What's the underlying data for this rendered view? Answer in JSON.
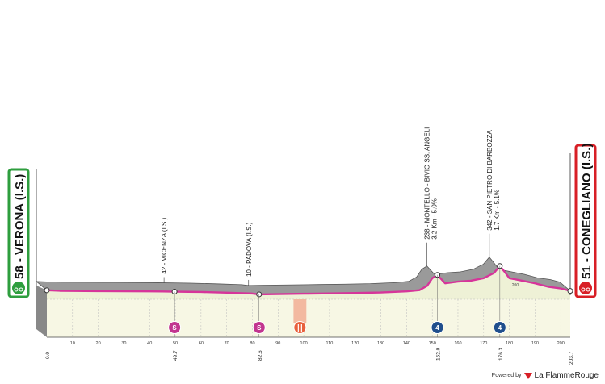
{
  "start": {
    "label": "58 - VERONA (I.S.)",
    "km": "0.0",
    "color": "#2e9e3e"
  },
  "finish": {
    "label": "51 - CONEGLIANO (I.S.)",
    "km": "203.7",
    "color": "#d81f26"
  },
  "waypoints": [
    {
      "label": "42 - VICENZA (I.S.)",
      "km": "49.7",
      "badge": "S",
      "badge_color": "#c2358f"
    },
    {
      "label": "10 - PADOVA (I.S.)",
      "km": "82.6",
      "badge": "S",
      "badge_color": "#c2358f"
    },
    {
      "label": "238 - MONTELLO - BIVIO SS. ANGELI",
      "sub": "3.2 Km - 5.0%",
      "km": "152.0",
      "badge": "4",
      "badge_color": "#1f4e8c"
    },
    {
      "label": "342 - SAN PIETRO DI BARBOZZA",
      "sub": "1.7 Km - 5.1%",
      "km": "176.3",
      "badge": "4",
      "badge_color": "#1f4e8c"
    }
  ],
  "feed_zone": {
    "km_from": 96,
    "km_to": 101,
    "badge": "fork-knife-icon",
    "badge_color": "#e8603c"
  },
  "axis_ticks": [
    "10",
    "20",
    "30",
    "40",
    "50",
    "60",
    "70",
    "80",
    "90",
    "100",
    "110",
    "120",
    "130",
    "140",
    "150",
    "160",
    "170",
    "180",
    "190",
    "200"
  ],
  "altitude_mark": "200",
  "chart_data": {
    "type": "area",
    "xlabel": "",
    "ylabel": "",
    "xlim": [
      0,
      203.7
    ],
    "x": [
      0,
      5,
      10,
      20,
      30,
      40,
      45,
      49.7,
      55,
      60,
      70,
      80,
      82.6,
      90,
      100,
      110,
      120,
      130,
      140,
      145,
      148,
      150,
      152,
      155,
      160,
      165,
      170,
      174,
      176.3,
      178,
      180,
      185,
      190,
      195,
      200,
      203.7
    ],
    "series": [
      {
        "values": [
          58,
          52,
          50,
          48,
          47,
          45,
          44,
          42,
          40,
          38,
          30,
          20,
          10,
          14,
          18,
          22,
          26,
          32,
          45,
          60,
          110,
          200,
          238,
          140,
          160,
          170,
          200,
          260,
          342,
          280,
          200,
          170,
          140,
          100,
          80,
          51
        ]
      }
    ],
    "icons": [
      "sprint-icon",
      "sprint-icon",
      "feed-zone-icon",
      "climb-cat4-icon",
      "climb-cat4-icon"
    ]
  },
  "footer": {
    "powered": "Powered by",
    "brand": "La FlammeRouge"
  }
}
